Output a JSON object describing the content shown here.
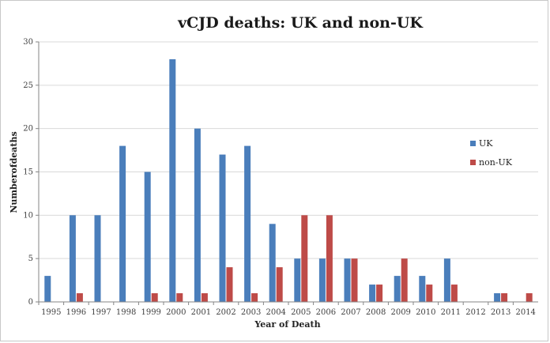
{
  "chart_data": {
    "type": "bar",
    "title": "vCJD deaths: UK and non-UK",
    "xlabel": "Year of Death",
    "ylabel": "Numberofdeaths",
    "ylim": [
      0,
      30
    ],
    "yticks": [
      0,
      5,
      10,
      15,
      20,
      25,
      30
    ],
    "grid": "horizontal",
    "legend_position": "right",
    "categories": [
      "1995",
      "1996",
      "1997",
      "1998",
      "1999",
      "2000",
      "2001",
      "2002",
      "2003",
      "2004",
      "2005",
      "2006",
      "2007",
      "2008",
      "2009",
      "2010",
      "2011",
      "2012",
      "2013",
      "2014"
    ],
    "series": [
      {
        "name": "UK",
        "color": "#4a7ebb",
        "values": [
          3,
          10,
          10,
          18,
          15,
          28,
          20,
          17,
          18,
          9,
          5,
          5,
          5,
          2,
          3,
          3,
          5,
          0,
          1,
          0
        ]
      },
      {
        "name": "non-UK",
        "color": "#be4b48",
        "values": [
          0,
          1,
          0,
          0,
          1,
          1,
          1,
          4,
          1,
          4,
          10,
          10,
          5,
          2,
          5,
          2,
          2,
          0,
          1,
          1
        ]
      }
    ]
  }
}
